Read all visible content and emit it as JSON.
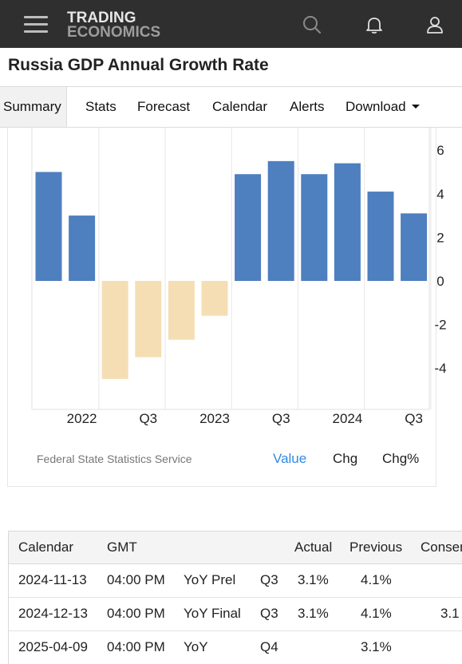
{
  "header": {
    "logo_line1": "TRADING",
    "logo_line2": "ECONOMICS",
    "icons": [
      "menu-icon",
      "search-icon",
      "bell-icon",
      "user-icon"
    ]
  },
  "page_title": "Russia GDP Annual Growth Rate",
  "tabs": [
    {
      "label": "Summary",
      "active": true
    },
    {
      "label": "Stats"
    },
    {
      "label": "Forecast"
    },
    {
      "label": "Calendar"
    },
    {
      "label": "Alerts"
    },
    {
      "label": "Download",
      "dropdown": true
    }
  ],
  "chart_data": {
    "type": "bar",
    "categories": [
      "2021 Q4",
      "2022 Q1",
      "2022 Q2",
      "2022 Q3",
      "2022 Q4",
      "2023 Q1",
      "2023 Q2",
      "2023 Q3",
      "2023 Q4",
      "2024 Q1",
      "2024 Q2",
      "2024 Q3"
    ],
    "values": [
      5.0,
      3.0,
      -4.5,
      -3.5,
      -2.7,
      -1.6,
      4.9,
      5.5,
      4.9,
      5.4,
      4.1,
      3.1
    ],
    "x_tick_labels": [
      "2022",
      "Q3",
      "2023",
      "Q3",
      "2024",
      "Q3"
    ],
    "x_tick_positions": [
      "2022 Q1",
      "2022 Q3",
      "2023 Q1",
      "2023 Q3",
      "2024 Q1",
      "2024 Q3"
    ],
    "y_ticks": [
      6,
      4,
      2,
      0,
      -2,
      -4
    ],
    "y_tick_labels": [
      "6",
      "4",
      "2",
      "0",
      "-2",
      "-4"
    ],
    "ylim": [
      -6,
      6.3
    ],
    "y_axis_side": "right",
    "colors": {
      "positive": "#4e7fbf",
      "negative": "#f5deb3"
    },
    "grid": "vertical"
  },
  "chart_footer": {
    "source": "Federal State Statistics Service",
    "modes": [
      {
        "label": "Value",
        "active": true
      },
      {
        "label": "Chg"
      },
      {
        "label": "Chg%"
      }
    ]
  },
  "calendar": {
    "columns": [
      "Calendar",
      "GMT",
      "",
      "",
      "Actual",
      "Previous",
      "Consensus"
    ],
    "rows": [
      {
        "date": "2024-11-13",
        "time": "04:00 PM",
        "event": "YoY Prel",
        "period": "Q3",
        "actual": "3.1%",
        "previous": "4.1%",
        "consensus": ""
      },
      {
        "date": "2024-12-13",
        "time": "04:00 PM",
        "event": "YoY Final",
        "period": "Q3",
        "actual": "3.1%",
        "previous": "4.1%",
        "consensus": "3.1"
      },
      {
        "date": "2025-04-09",
        "time": "04:00 PM",
        "event": "YoY",
        "period": "Q4",
        "actual": "",
        "previous": "3.1%",
        "consensus": ""
      }
    ]
  }
}
